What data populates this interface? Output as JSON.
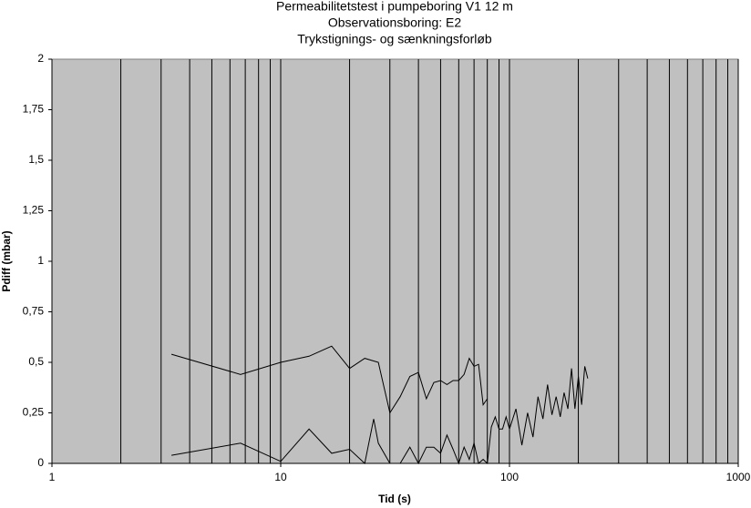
{
  "chart_data": {
    "type": "line",
    "title": [
      "Permeabilitetstest i pumpeboring V1 12 m",
      "Observationsboring: E2",
      "Trykstignings- og sænkningsforløb"
    ],
    "x_label": "Tid (s)",
    "y_label": "Pdiff (mbar)",
    "xlim": [
      1,
      1000
    ],
    "xticks": [
      1,
      10,
      100,
      1000
    ],
    "xscale": "log",
    "xminor": [
      2,
      3,
      4,
      5,
      6,
      7,
      8,
      9,
      20,
      30,
      40,
      50,
      60,
      70,
      80,
      90,
      200,
      300,
      400,
      500,
      600,
      700,
      800,
      900
    ],
    "ylim": [
      0,
      2
    ],
    "yticks": [
      0,
      {
        "value": 0.25,
        "label": "0,25"
      },
      {
        "value": 0.5,
        "label": "0,5"
      },
      {
        "value": 0.75,
        "label": "0,75"
      },
      1,
      {
        "value": 1.25,
        "label": "1,25"
      },
      {
        "value": 1.5,
        "label": "1,5"
      },
      {
        "value": 1.75,
        "label": "1,75"
      },
      2
    ],
    "grid": "x",
    "background": "#c0c0c0",
    "series": [
      {
        "color": "#000000",
        "x": [
          3.33,
          6.67,
          10,
          13.3,
          16.7,
          20,
          23.3,
          26.7,
          30,
          33.3,
          36.7,
          40,
          43.3,
          46.7,
          50,
          53.3,
          56.7,
          60,
          63.3,
          66.7,
          70,
          73.3,
          76.7,
          80
        ],
        "values": [
          0.54,
          0.44,
          0.5,
          0.53,
          0.58,
          0.47,
          0.52,
          0.5,
          0.25,
          0.33,
          0.43,
          0.45,
          0.32,
          0.4,
          0.41,
          0.39,
          0.41,
          0.41,
          0.44,
          0.52,
          0.48,
          0.49,
          0.29,
          0.32
        ]
      },
      {
        "color": "#000000",
        "x": [
          3.33,
          6.67,
          10,
          13.3,
          16.7,
          20,
          23.3,
          25.5,
          26.7,
          30,
          33.3,
          36.7,
          40,
          43.3,
          46.7,
          50,
          53.3,
          56.7,
          60,
          63.3,
          66.7,
          70,
          73.3,
          76.7,
          80,
          83.3,
          86.7,
          90,
          93.3,
          96.7,
          100,
          106.7,
          113.3,
          120,
          126.7,
          133.3,
          140,
          146.7,
          153.3,
          160,
          166.7,
          173.3,
          180,
          186.7,
          193.3,
          200,
          206.7,
          213.3,
          220
        ],
        "values": [
          0.04,
          0.1,
          0.01,
          0.17,
          0.05,
          0.07,
          0.0,
          0.22,
          0.1,
          0.0,
          0.0,
          0.08,
          0.0,
          0.08,
          0.08,
          0.05,
          0.14,
          0.07,
          0.0,
          0.08,
          0.02,
          0.1,
          0.0,
          0.02,
          0.0,
          0.18,
          0.23,
          0.17,
          0.17,
          0.23,
          0.17,
          0.27,
          0.09,
          0.25,
          0.13,
          0.33,
          0.22,
          0.39,
          0.24,
          0.33,
          0.23,
          0.35,
          0.27,
          0.47,
          0.27,
          0.43,
          0.29,
          0.48,
          0.42
        ]
      }
    ]
  }
}
